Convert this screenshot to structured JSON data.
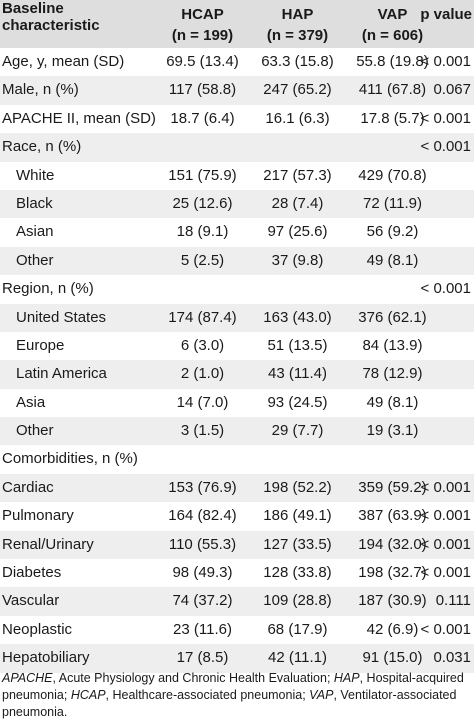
{
  "table": {
    "headers": {
      "characteristic": "Baseline characteristic",
      "hcap": "HCAP",
      "hcap_n": "(n = 199)",
      "hap": "HAP",
      "hap_n": "(n = 379)",
      "vap": "VAP",
      "vap_n": "(n = 606)",
      "pvalue": "p value"
    },
    "rows": [
      {
        "label": "Age, y, mean (SD)",
        "indent": false,
        "hcap": "69.5 (13.4)",
        "hap": "63.3 (15.8)",
        "vap": "55.8 (19.8)",
        "p": "< 0.001"
      },
      {
        "label": "Male, n (%)",
        "indent": false,
        "hcap": "117 (58.8)",
        "hap": "247 (65.2)",
        "vap": "411 (67.8)",
        "p": "0.067"
      },
      {
        "label": "APACHE II, mean (SD)",
        "indent": false,
        "hcap": "18.7 (6.4)",
        "hap": "16.1 (6.3)",
        "vap": "17.8 (5.7)",
        "p": "< 0.001"
      },
      {
        "label": "Race, n (%)",
        "indent": false,
        "hcap": "",
        "hap": "",
        "vap": "",
        "p": "< 0.001"
      },
      {
        "label": "White",
        "indent": true,
        "hcap": "151 (75.9)",
        "hap": "217 (57.3)",
        "vap": "429 (70.8)",
        "p": ""
      },
      {
        "label": "Black",
        "indent": true,
        "hcap": "25 (12.6)",
        "hap": "28 (7.4)",
        "vap": "72 (11.9)",
        "p": ""
      },
      {
        "label": "Asian",
        "indent": true,
        "hcap": "18 (9.1)",
        "hap": "97 (25.6)",
        "vap": "56 (9.2)",
        "p": ""
      },
      {
        "label": "Other",
        "indent": true,
        "hcap": "5 (2.5)",
        "hap": "37 (9.8)",
        "vap": "49 (8.1)",
        "p": ""
      },
      {
        "label": "Region, n (%)",
        "indent": false,
        "hcap": "",
        "hap": "",
        "vap": "",
        "p": "< 0.001"
      },
      {
        "label": "United States",
        "indent": true,
        "hcap": "174 (87.4)",
        "hap": "163 (43.0)",
        "vap": "376 (62.1)",
        "p": ""
      },
      {
        "label": "Europe",
        "indent": true,
        "hcap": "6 (3.0)",
        "hap": "51 (13.5)",
        "vap": "84 (13.9)",
        "p": ""
      },
      {
        "label": "Latin America",
        "indent": true,
        "hcap": "2 (1.0)",
        "hap": "43 (11.4)",
        "vap": "78 (12.9)",
        "p": ""
      },
      {
        "label": "Asia",
        "indent": true,
        "hcap": "14 (7.0)",
        "hap": "93 (24.5)",
        "vap": "49 (8.1)",
        "p": ""
      },
      {
        "label": "Other",
        "indent": true,
        "hcap": "3 (1.5)",
        "hap": "29 (7.7)",
        "vap": "19 (3.1)",
        "p": ""
      },
      {
        "label": "Comorbidities, n (%)",
        "indent": false,
        "hcap": "",
        "hap": "",
        "vap": "",
        "p": ""
      },
      {
        "label": "Cardiac",
        "indent": false,
        "hcap": "153 (76.9)",
        "hap": "198 (52.2)",
        "vap": "359 (59.2)",
        "p": "< 0.001"
      },
      {
        "label": "Pulmonary",
        "indent": false,
        "hcap": "164 (82.4)",
        "hap": "186 (49.1)",
        "vap": "387 (63.9)",
        "p": "< 0.001"
      },
      {
        "label": "Renal/Urinary",
        "indent": false,
        "hcap": "110 (55.3)",
        "hap": "127 (33.5)",
        "vap": "194 (32.0)",
        "p": "< 0.001"
      },
      {
        "label": "Diabetes",
        "indent": false,
        "hcap": "98 (49.3)",
        "hap": "128 (33.8)",
        "vap": "198 (32.7)",
        "p": "< 0.001"
      },
      {
        "label": "Vascular",
        "indent": false,
        "hcap": "74 (37.2)",
        "hap": "109 (28.8)",
        "vap": "187 (30.9)",
        "p": "0.111"
      },
      {
        "label": "Neoplastic",
        "indent": false,
        "hcap": "23 (11.6)",
        "hap": "68 (17.9)",
        "vap": "42 (6.9)",
        "p": "< 0.001"
      },
      {
        "label": "Hepatobiliary",
        "indent": false,
        "hcap": "17 (8.5)",
        "hap": "42 (11.1)",
        "vap": "91 (15.0)",
        "p": "0.031"
      }
    ]
  },
  "footnote": {
    "abbr1": "APACHE",
    "def1": ", Acute Physiology and Chronic Health Evaluation; ",
    "abbr2": "HAP",
    "def2": ", Hospital-acquired pneumonia; ",
    "abbr3": "HCAP",
    "def3": ", Healthcare-associated pneumonia; ",
    "abbr4": "VAP",
    "def4": ", Ventilator-associated pneumonia."
  },
  "colors": {
    "header_bg": "#dedede",
    "stripe_bg": "#eeeeee",
    "text": "#1a1a1a"
  }
}
